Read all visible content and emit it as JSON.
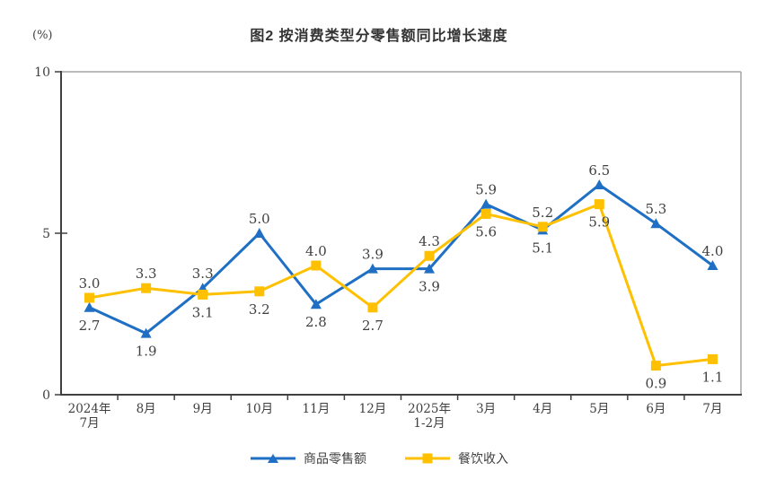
{
  "title": "图2 按消费类型分零售额同比增长速度",
  "y_unit": "(%)",
  "chart_data": {
    "type": "line",
    "title": "图2 按消费类型分零售额同比增长速度",
    "ylabel": "(%)",
    "ylim": [
      0,
      10
    ],
    "y_ticks": [
      0,
      5,
      10
    ],
    "grid": false,
    "legend_position": "bottom-center",
    "categories": [
      "2024年\n7月",
      "8月",
      "9月",
      "10月",
      "11月",
      "12月",
      "2025年\n1-2月",
      "3月",
      "4月",
      "5月",
      "6月",
      "7月"
    ],
    "series": [
      {
        "name": "商品零售额",
        "color": "#1F6FC4",
        "marker": "triangle",
        "values": [
          2.7,
          1.9,
          3.3,
          5.0,
          2.8,
          3.9,
          3.9,
          5.9,
          5.1,
          6.5,
          5.3,
          4.0
        ],
        "label_positions": [
          "below",
          "below",
          "above",
          "above",
          "below",
          "above",
          "below",
          "above",
          "below",
          "above",
          "above",
          "above"
        ]
      },
      {
        "name": "餐饮收入",
        "color": "#FFC000",
        "marker": "square",
        "values": [
          3.0,
          3.3,
          3.1,
          3.2,
          4.0,
          2.7,
          4.3,
          5.6,
          5.2,
          5.9,
          0.9,
          1.1
        ],
        "label_positions": [
          "above",
          "above",
          "below",
          "below",
          "above",
          "below",
          "above",
          "below",
          "above",
          "below",
          "below",
          "below"
        ]
      }
    ]
  },
  "colors": {
    "axis": "#404040",
    "plot_border": "#A6A6A6",
    "text": "#404040"
  }
}
